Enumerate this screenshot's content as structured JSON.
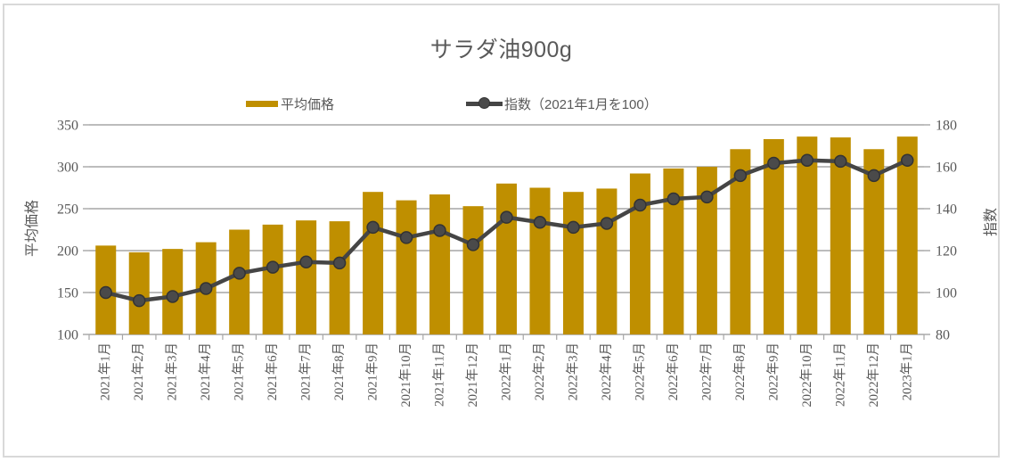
{
  "chart_data": {
    "type": "combo-bar-line",
    "title": "サラダ油900g",
    "categories": [
      "2021年1月",
      "2021年2月",
      "2021年3月",
      "2021年4月",
      "2021年5月",
      "2021年6月",
      "2021年7月",
      "2021年8月",
      "2021年9月",
      "2021年10月",
      "2021年11月",
      "2021年12月",
      "2022年1月",
      "2022年2月",
      "2022年3月",
      "2022年4月",
      "2022年5月",
      "2022年6月",
      "2022年7月",
      "2022年8月",
      "2022年9月",
      "2022年10月",
      "2022年11月",
      "2022年12月",
      "2023年1月"
    ],
    "series": [
      {
        "name": "平均価格",
        "type": "bar",
        "axis": "left",
        "values": [
          206,
          198,
          202,
          210,
          225,
          231,
          236,
          235,
          270,
          260,
          267,
          253,
          280,
          275,
          270,
          274,
          292,
          298,
          300,
          321,
          333,
          336,
          335,
          321,
          336
        ]
      },
      {
        "name": "指数（2021年1月を100）",
        "type": "line",
        "axis": "right",
        "values": [
          100.0,
          96.1,
          98.1,
          101.9,
          109.2,
          112.1,
          114.6,
          114.1,
          131.1,
          126.2,
          129.6,
          122.8,
          135.9,
          133.5,
          131.1,
          133.0,
          141.7,
          144.7,
          145.6,
          155.8,
          161.7,
          163.1,
          162.6,
          155.8,
          163.1
        ]
      }
    ],
    "left_axis": {
      "title": "平均価格",
      "min": 100,
      "max": 350,
      "ticks": [
        100,
        150,
        200,
        250,
        300,
        350
      ]
    },
    "right_axis": {
      "title": "指数",
      "min": 80,
      "max": 180,
      "ticks": [
        80,
        100,
        120,
        140,
        160,
        180
      ]
    },
    "grid": true,
    "legend_position": "top"
  },
  "colors": {
    "bar": "#BF8F00",
    "line": "#454545",
    "marker_fill": "#4a4a4a",
    "marker_stroke": "#333333",
    "grid": "#a6a6a6",
    "text": "#595959",
    "frame_border": "#d9d9d9"
  }
}
